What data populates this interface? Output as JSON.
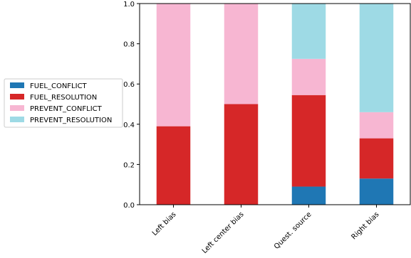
{
  "chart_data": {
    "type": "bar",
    "stacked": true,
    "categories": [
      "Left bias",
      "Left center bias",
      "Quest. source",
      "Right bias"
    ],
    "series": [
      {
        "name": "FUEL_CONFLICT",
        "color": "#1f77b4",
        "values": [
          0.0,
          0.0,
          0.09,
          0.13
        ]
      },
      {
        "name": "FUEL_RESOLUTION",
        "color": "#d62728",
        "values": [
          0.39,
          0.5,
          0.455,
          0.2
        ]
      },
      {
        "name": "PREVENT_CONFLICT",
        "color": "#f7b6d2",
        "values": [
          0.61,
          0.5,
          0.18,
          0.13
        ]
      },
      {
        "name": "PREVENT_RESOLUTION",
        "color": "#9edae5",
        "values": [
          0.0,
          0.0,
          0.275,
          0.54
        ]
      }
    ],
    "ylim": [
      0,
      1.0
    ],
    "yticks": [
      "0.0",
      "0.2",
      "0.4",
      "0.6",
      "0.8",
      "1.0"
    ],
    "xlabel": "",
    "ylabel": "",
    "title": "",
    "grid": false,
    "legend_position": "left, outside plot"
  }
}
